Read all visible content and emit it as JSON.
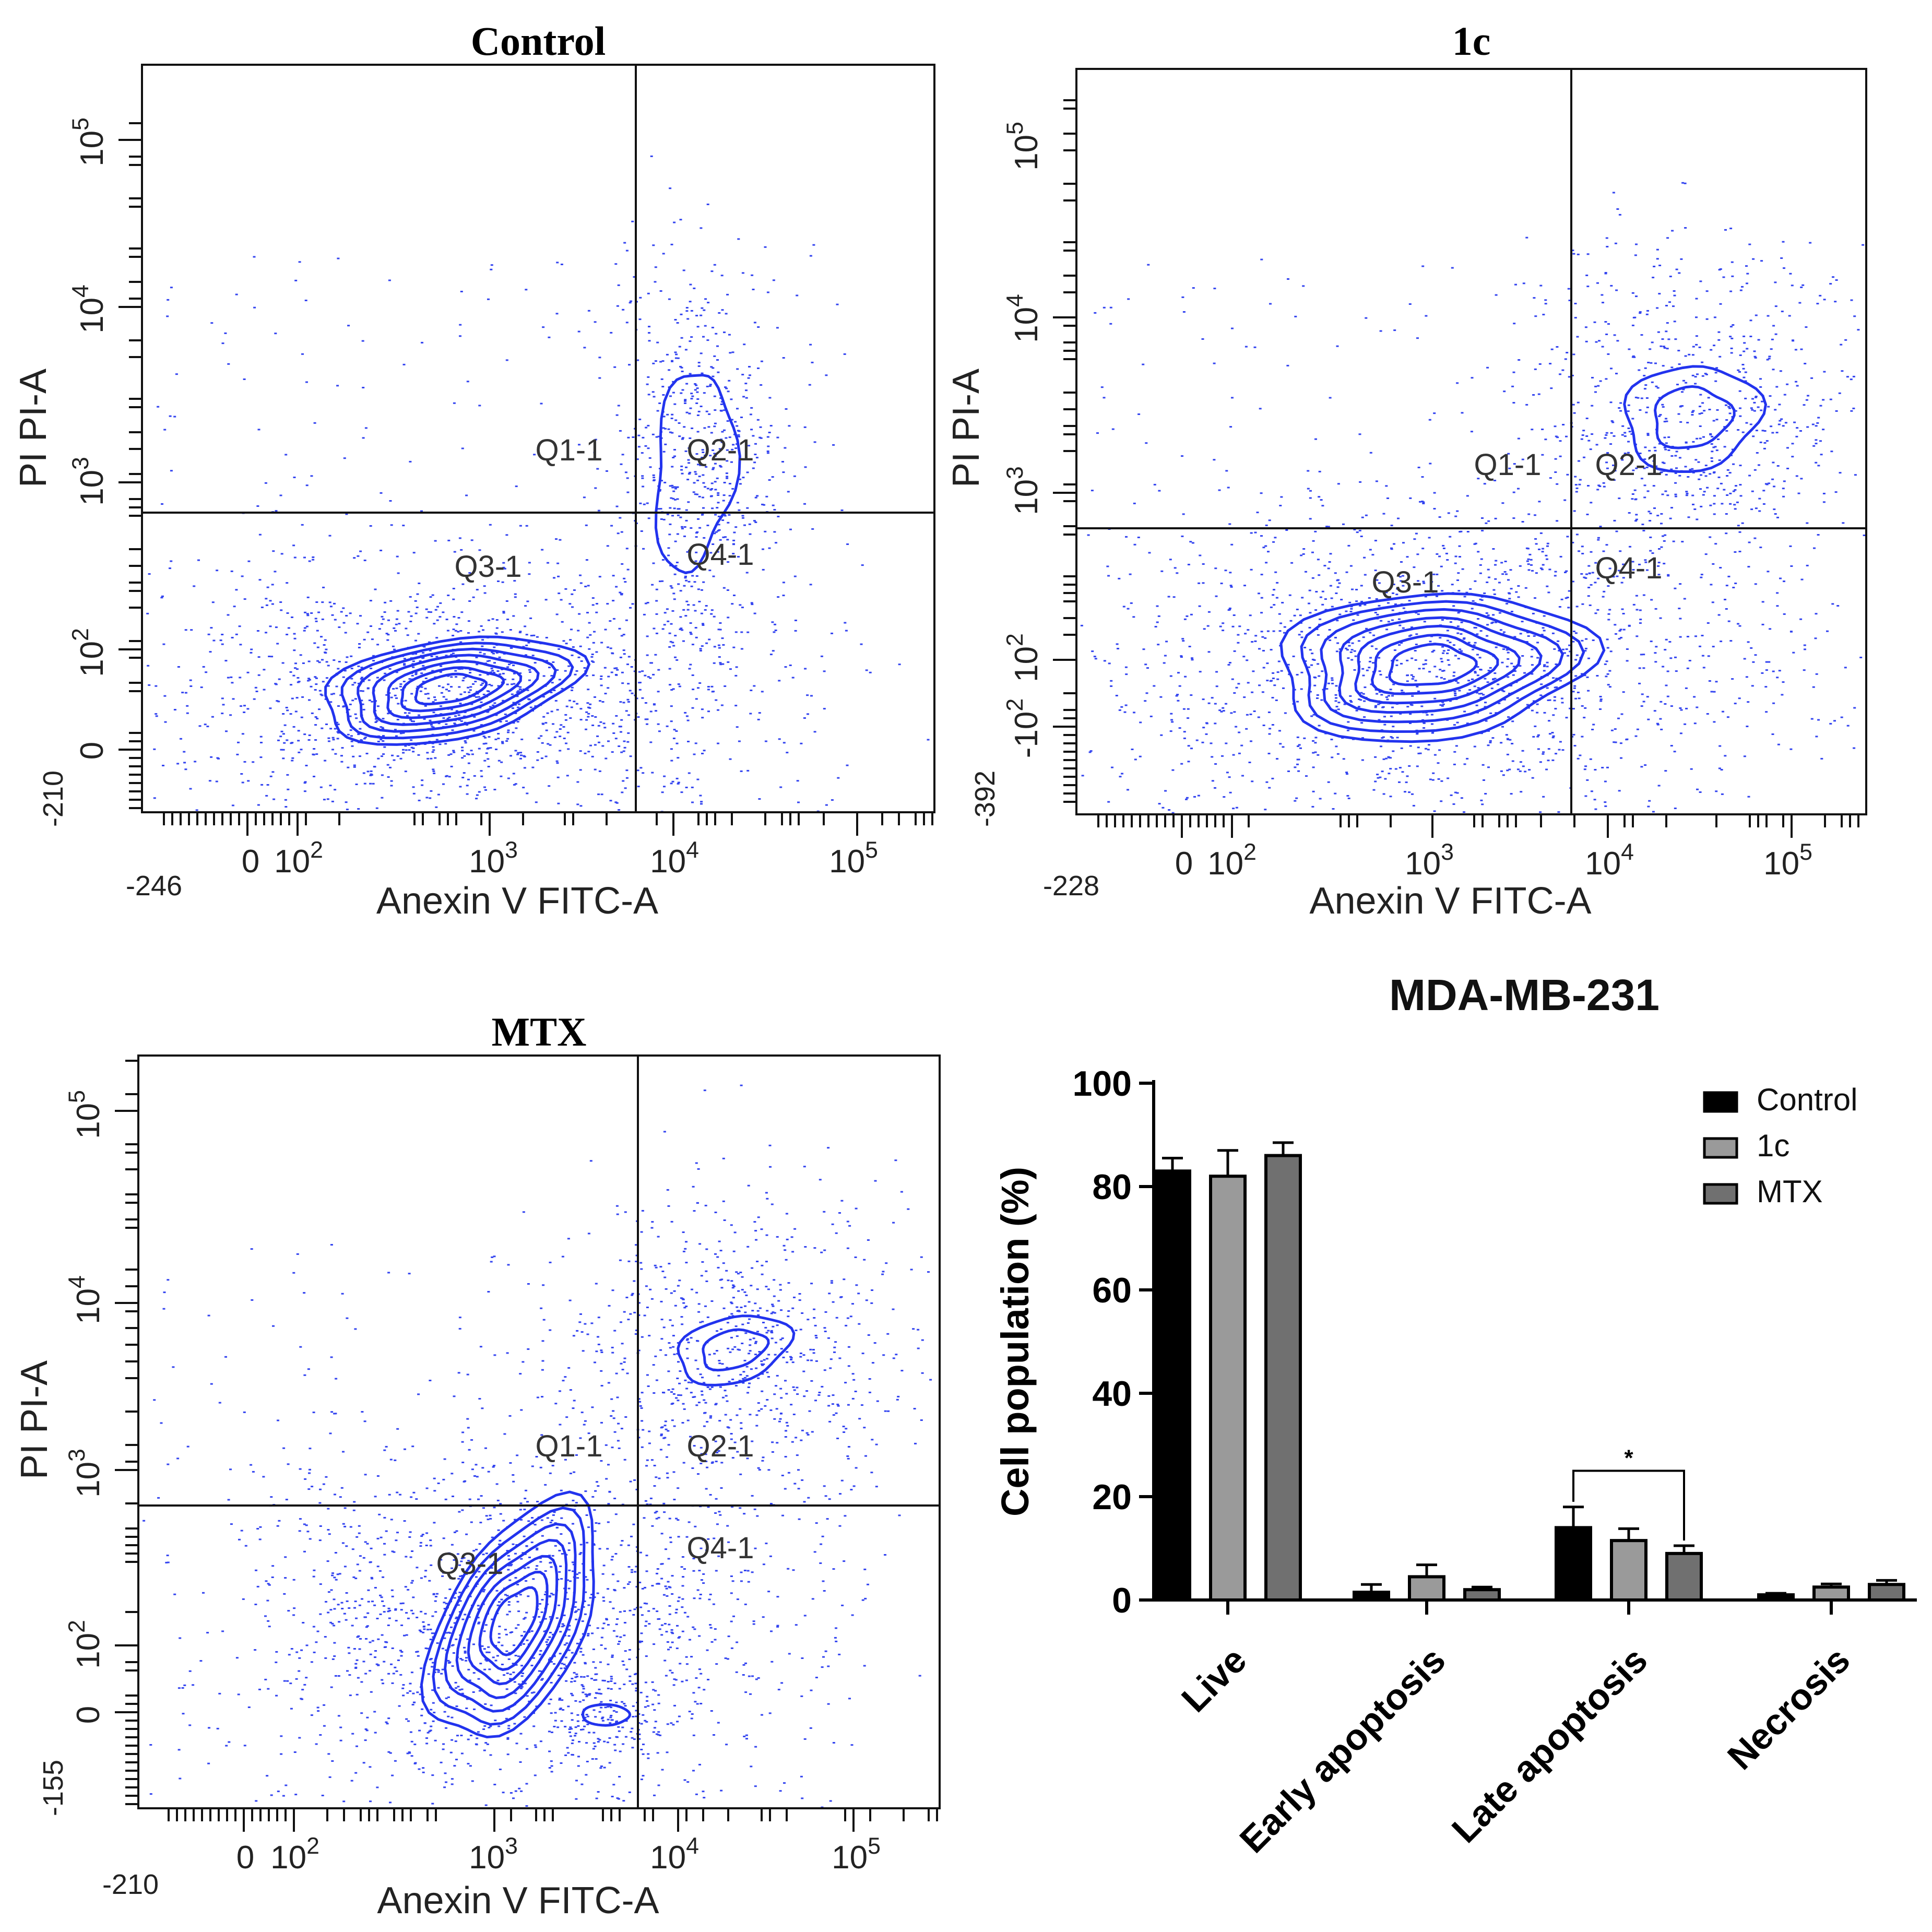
{
  "colors": {
    "contour": "#2233ee",
    "dots": "#3344f0",
    "axis": "#111111"
  },
  "chart_data": [
    {
      "type": "scatter",
      "subtype": "flow-cytometry-contour",
      "title": "Control",
      "xlabel": "Anexin V FITC-A",
      "ylabel": "PI PI-A",
      "x_ticks": [
        "0",
        "10^2",
        "10^3",
        "10^4",
        "10^5"
      ],
      "x_min_label": "-246",
      "y_ticks": [
        "0",
        "10^2",
        "10^3",
        "10^4",
        "10^5"
      ],
      "y_min_label": "-210",
      "quadrants": [
        "Q1-1",
        "Q2-1",
        "Q3-1",
        "Q4-1"
      ]
    },
    {
      "type": "scatter",
      "subtype": "flow-cytometry-contour",
      "title": "1c",
      "xlabel": "Anexin V FITC-A",
      "ylabel": "PI PI-A",
      "x_ticks": [
        "0",
        "10^2",
        "10^3",
        "10^4",
        "10^5"
      ],
      "x_min_label": "-228",
      "y_ticks": [
        "-10^2",
        "10^2",
        "10^3",
        "10^4",
        "10^5"
      ],
      "y_min_label": "-392",
      "quadrants": [
        "Q1-1",
        "Q2-1",
        "Q3-1",
        "Q4-1"
      ]
    },
    {
      "type": "scatter",
      "subtype": "flow-cytometry-contour",
      "title": "MTX",
      "xlabel": "Anexin V FITC-A",
      "ylabel": "PI PI-A",
      "x_ticks": [
        "0",
        "10^2",
        "10^3",
        "10^4",
        "10^5"
      ],
      "x_min_label": "-210",
      "y_ticks": [
        "0",
        "10^2",
        "10^3",
        "10^4",
        "10^5"
      ],
      "y_min_label": "-155",
      "quadrants": [
        "Q1-1",
        "Q2-1",
        "Q3-1",
        "Q4-1"
      ]
    },
    {
      "type": "bar",
      "title": "MDA-MB-231",
      "ylabel": "Cell population (%)",
      "xlabel": "",
      "ylim": [
        0,
        100
      ],
      "yticks": [
        0,
        20,
        40,
        60,
        80,
        100
      ],
      "categories": [
        "Live",
        "Early apoptosis",
        "Late apoptosis",
        "Necrosis"
      ],
      "series": [
        {
          "name": "Control",
          "fill": "#000000",
          "values": [
            83,
            1.5,
            14,
            1.0
          ],
          "errors": [
            2.5,
            1.5,
            4.0,
            0.3
          ]
        },
        {
          "name": "1c",
          "fill": "#9a9a9a",
          "values": [
            82,
            4.5,
            11.5,
            2.5
          ],
          "errors": [
            5.0,
            2.3,
            2.3,
            0.6
          ]
        },
        {
          "name": "MTX",
          "fill": "#707070",
          "values": [
            86,
            2.0,
            9.0,
            3.0
          ],
          "errors": [
            2.5,
            0.5,
            1.5,
            0.8
          ]
        }
      ],
      "significance": {
        "between": [
          "Control",
          "MTX"
        ],
        "category": "Late apoptosis",
        "label": "*"
      }
    }
  ]
}
